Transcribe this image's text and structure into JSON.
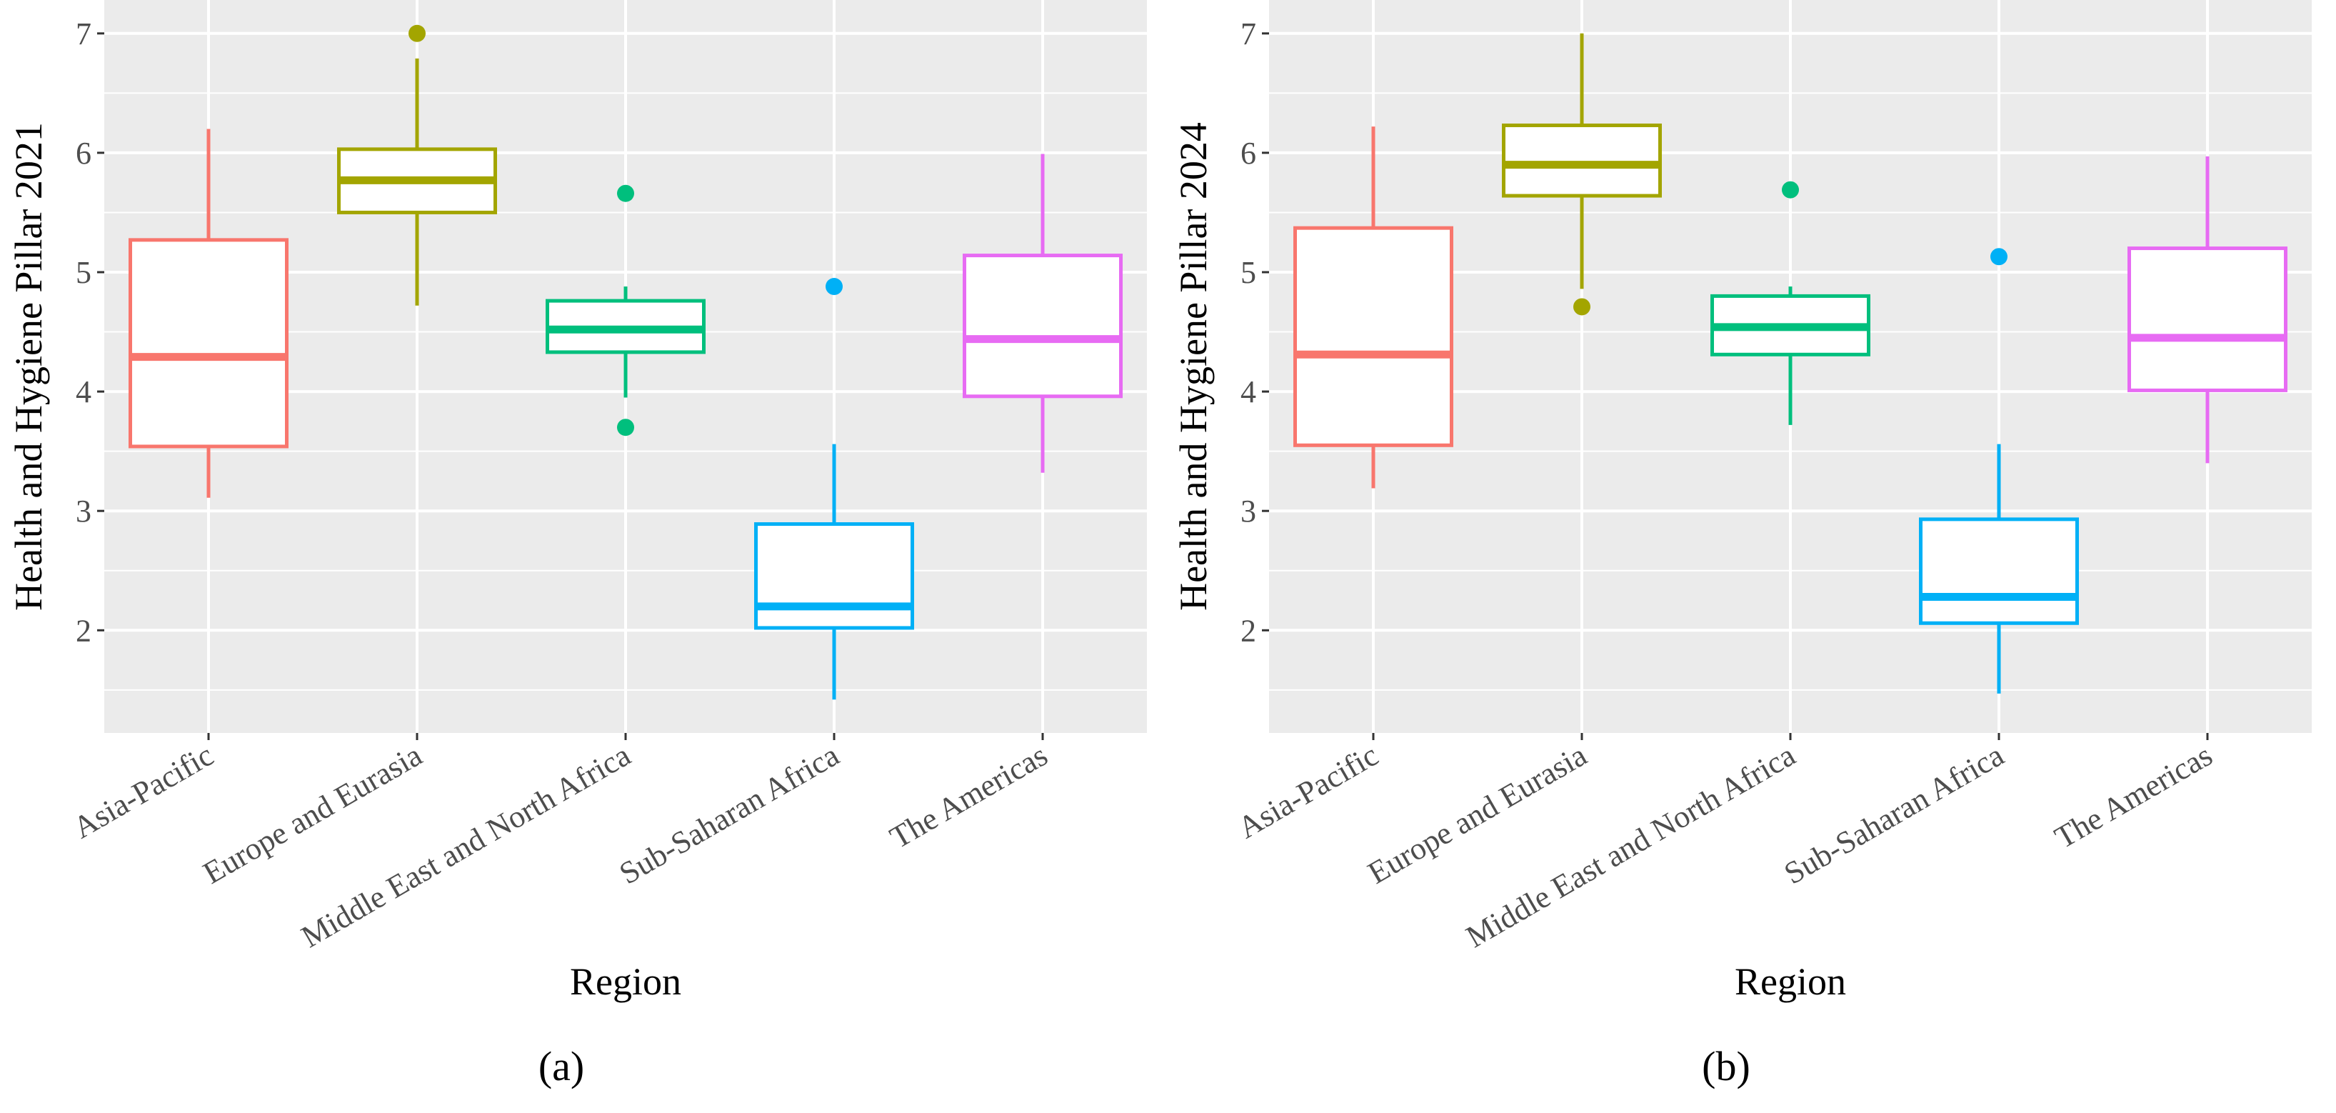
{
  "chart_data": [
    {
      "type": "box",
      "panel_label": "(a)",
      "panel_letter": "a",
      "xlabel": "Region",
      "ylabel": "Health and Hygiene Pillar 2021",
      "ylim": [
        1.14,
        7.28
      ],
      "yticks": [
        2,
        3,
        4,
        5,
        6,
        7
      ],
      "grid": true,
      "categories": [
        "Asia-Pacific",
        "Europe and Eurasia",
        "Middle East and North Africa",
        "Sub-Saharan Africa",
        "The Americas"
      ],
      "colors": [
        "#F8766D",
        "#A3A500",
        "#00BF7D",
        "#00B0F6",
        "#E76BF3"
      ],
      "boxes": [
        {
          "whisker_low": 3.11,
          "q1": 3.54,
          "median": 4.29,
          "q3": 5.27,
          "whisker_high": 6.2,
          "outliers": []
        },
        {
          "whisker_low": 4.72,
          "q1": 5.5,
          "median": 5.77,
          "q3": 6.03,
          "whisker_high": 6.79,
          "outliers": [
            7.0
          ]
        },
        {
          "whisker_low": 3.95,
          "q1": 4.33,
          "median": 4.52,
          "q3": 4.76,
          "whisker_high": 4.88,
          "outliers": [
            5.66,
            3.7
          ]
        },
        {
          "whisker_low": 1.42,
          "q1": 2.02,
          "median": 2.2,
          "q3": 2.89,
          "whisker_high": 3.56,
          "outliers": [
            4.88
          ]
        },
        {
          "whisker_low": 3.32,
          "q1": 3.96,
          "median": 4.44,
          "q3": 5.14,
          "whisker_high": 5.99,
          "outliers": []
        }
      ]
    },
    {
      "type": "box",
      "panel_label": "(b)",
      "panel_letter": "b",
      "xlabel": "Region",
      "ylabel": "Health and Hygiene Pillar 2024",
      "ylim": [
        1.14,
        7.28
      ],
      "yticks": [
        2,
        3,
        4,
        5,
        6,
        7
      ],
      "grid": true,
      "categories": [
        "Asia-Pacific",
        "Europe and Eurasia",
        "Middle East and North Africa",
        "Sub-Saharan Africa",
        "The Americas"
      ],
      "colors": [
        "#F8766D",
        "#A3A500",
        "#00BF7D",
        "#00B0F6",
        "#E76BF3"
      ],
      "boxes": [
        {
          "whisker_low": 3.19,
          "q1": 3.55,
          "median": 4.31,
          "q3": 5.37,
          "whisker_high": 6.22,
          "outliers": []
        },
        {
          "whisker_low": 4.86,
          "q1": 5.64,
          "median": 5.9,
          "q3": 6.23,
          "whisker_high": 7.0,
          "outliers": [
            4.71
          ]
        },
        {
          "whisker_low": 3.72,
          "q1": 4.31,
          "median": 4.54,
          "q3": 4.8,
          "whisker_high": 4.88,
          "outliers": [
            5.69
          ]
        },
        {
          "whisker_low": 1.47,
          "q1": 2.06,
          "median": 2.28,
          "q3": 2.93,
          "whisker_high": 3.56,
          "outliers": [
            5.13
          ]
        },
        {
          "whisker_low": 3.4,
          "q1": 4.01,
          "median": 4.45,
          "q3": 5.2,
          "whisker_high": 5.97,
          "outliers": []
        }
      ]
    }
  ]
}
